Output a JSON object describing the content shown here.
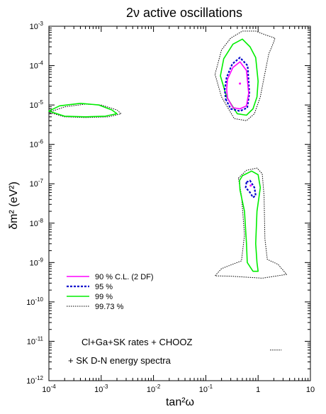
{
  "chart_data": {
    "type": "contour",
    "title": "2ν active oscillations",
    "xlabel": "tan²ω",
    "ylabel": "δm² (eV²)",
    "x_scale": "log",
    "y_scale": "log",
    "xlim": [
      0.0001,
      10
    ],
    "ylim": [
      1e-12,
      0.001
    ],
    "grid": false,
    "x_ticks": [
      {
        "value": 0.0001,
        "base": "10",
        "exp": "-4"
      },
      {
        "value": 0.001,
        "base": "10",
        "exp": "-3"
      },
      {
        "value": 0.01,
        "base": "10",
        "exp": "-2"
      },
      {
        "value": 0.1,
        "base": "10",
        "exp": "-1"
      },
      {
        "value": 1,
        "base": "1",
        "exp": ""
      },
      {
        "value": 10,
        "base": "10",
        "exp": ""
      }
    ],
    "y_ticks": [
      {
        "value": 1e-12,
        "base": "10",
        "exp": "-12"
      },
      {
        "value": 1e-11,
        "base": "10",
        "exp": "-11"
      },
      {
        "value": 1e-10,
        "base": "10",
        "exp": "-10"
      },
      {
        "value": 1e-09,
        "base": "10",
        "exp": "-9"
      },
      {
        "value": 1e-08,
        "base": "10",
        "exp": "-8"
      },
      {
        "value": 1e-07,
        "base": "10",
        "exp": "-7"
      },
      {
        "value": 1e-06,
        "base": "10",
        "exp": "-6"
      },
      {
        "value": 1e-05,
        "base": "10",
        "exp": "-5"
      },
      {
        "value": 0.0001,
        "base": "10",
        "exp": "-4"
      },
      {
        "value": 0.001,
        "base": "10",
        "exp": "-3"
      }
    ],
    "legend_position": "lower-left",
    "series": [
      {
        "name": "90 % C.L. (2 DF)",
        "color": "#ff00ff",
        "style": "solid",
        "regions": [
          [
            [
              0.26,
              1.5e-05
            ],
            [
              0.33,
              8.5e-06
            ],
            [
              0.45,
              8e-06
            ],
            [
              0.6,
              9.5e-06
            ],
            [
              0.66,
              2e-05
            ],
            [
              0.6,
              7.5e-05
            ],
            [
              0.45,
              0.000125
            ],
            [
              0.33,
              9e-05
            ],
            [
              0.26,
              4.5e-05
            ],
            [
              0.25,
              2.5e-05
            ]
          ]
        ]
      },
      {
        "name": "95 %",
        "color": "#0000cc",
        "style": "dashed",
        "regions": [
          [
            [
              0.24,
              1.4e-05
            ],
            [
              0.3,
              8e-06
            ],
            [
              0.45,
              7e-06
            ],
            [
              0.62,
              8.5e-06
            ],
            [
              0.68,
              2e-05
            ],
            [
              0.63,
              0.0001
            ],
            [
              0.45,
              0.00016
            ],
            [
              0.32,
              0.00011
            ],
            [
              0.25,
              5e-05
            ],
            [
              0.23,
              2.5e-05
            ]
          ],
          [
            [
              0.6,
              1.1e-07
            ],
            [
              0.7,
              1.2e-07
            ],
            [
              0.85,
              8e-08
            ],
            [
              0.9,
              5e-08
            ],
            [
              0.8,
              4.5e-08
            ],
            [
              0.7,
              6e-08
            ],
            [
              0.58,
              8e-08
            ]
          ]
        ]
      },
      {
        "name": "99 %",
        "color": "#00ee00",
        "style": "solid",
        "regions": [
          [
            [
              0.0001,
              7e-06
            ],
            [
              0.00016,
              9.5e-06
            ],
            [
              0.0004,
              1.1e-05
            ],
            [
              0.0009,
              1e-05
            ],
            [
              0.0016,
              7.5e-06
            ],
            [
              0.002,
              6e-06
            ],
            [
              0.0012,
              5.2e-06
            ],
            [
              0.0005,
              5e-06
            ],
            [
              0.0002,
              5.2e-06
            ]
          ],
          [
            [
              0.19,
              5.5e-05
            ],
            [
              0.25,
              1.6e-05
            ],
            [
              0.4,
              6e-06
            ],
            [
              0.6,
              5.5e-06
            ],
            [
              0.8,
              8e-06
            ],
            [
              0.95,
              1.6e-05
            ],
            [
              1,
              4e-05
            ],
            [
              0.9,
              0.00016
            ],
            [
              0.7,
              0.0003
            ],
            [
              0.5,
              0.00047
            ],
            [
              0.33,
              0.00035
            ],
            [
              0.22,
              0.00015
            ]
          ],
          [
            [
              0.5,
              1.6e-07
            ],
            [
              0.75,
              2.1e-07
            ],
            [
              1,
              1.7e-07
            ],
            [
              1.1,
              8e-08
            ],
            [
              0.95,
              2e-08
            ],
            [
              0.9,
              3e-09
            ],
            [
              0.95,
              1e-09
            ],
            [
              1,
              6e-10
            ],
            [
              0.8,
              6e-10
            ],
            [
              0.62,
              1e-09
            ],
            [
              0.6,
              3e-09
            ],
            [
              0.55,
              2e-08
            ],
            [
              0.45,
              7e-08
            ],
            [
              0.44,
              1.2e-07
            ]
          ]
        ]
      },
      {
        "name": "99.73 %",
        "color": "#000000",
        "style": "dotted",
        "regions": [
          [
            [
              0.0001,
              6.5e-06
            ],
            [
              0.0002,
              9e-06
            ],
            [
              0.0005,
              1.05e-05
            ],
            [
              0.001,
              1e-05
            ],
            [
              0.002,
              7.5e-06
            ],
            [
              0.0024,
              6e-06
            ],
            [
              0.0014,
              5e-06
            ],
            [
              0.0005,
              4.8e-06
            ],
            [
              0.0002,
              5e-06
            ]
          ],
          [
            [
              0.15,
              6e-05
            ],
            [
              0.2,
              1.6e-05
            ],
            [
              0.35,
              4.5e-06
            ],
            [
              0.6,
              4e-06
            ],
            [
              0.85,
              6e-06
            ],
            [
              1.1,
              1.6e-05
            ],
            [
              1.3,
              5e-05
            ],
            [
              1.6,
              0.0002
            ],
            [
              2,
              0.0004
            ],
            [
              2.1,
              0.0005
            ],
            [
              1.4,
              0.0006
            ],
            [
              0.9,
              0.00075
            ],
            [
              0.5,
              0.00075
            ],
            [
              0.3,
              0.0005
            ],
            [
              0.2,
              0.00025
            ]
          ],
          [
            [
              0.42,
              1.4e-07
            ],
            [
              0.6,
              2.2e-07
            ],
            [
              0.95,
              2.5e-07
            ],
            [
              1.2,
              1.8e-07
            ],
            [
              1.3,
              5e-08
            ],
            [
              1.35,
              4e-09
            ],
            [
              1.5,
              1.2e-09
            ],
            [
              2.4,
              9e-10
            ],
            [
              3.5,
              5e-10
            ],
            [
              1.2,
              4e-10
            ],
            [
              0.3,
              4.5e-10
            ],
            [
              0.15,
              4.6e-10
            ],
            [
              0.2,
              7e-10
            ],
            [
              0.48,
              1.1e-09
            ],
            [
              0.55,
              5e-09
            ],
            [
              0.48,
              5e-08
            ]
          ],
          [
            [
              1.7,
              6e-12
            ],
            [
              2.8,
              6e-12
            ]
          ]
        ]
      }
    ],
    "best_fit_points": [
      {
        "x": 0.45,
        "y": 3.5e-05,
        "color": "#ff00ff"
      },
      {
        "x": 0.72,
        "y": 9e-08,
        "color": "#ff00ff"
      }
    ],
    "annotations": [
      "Cl+Ga+SK rates + CHOOZ",
      "+ SK D-N energy spectra"
    ]
  }
}
